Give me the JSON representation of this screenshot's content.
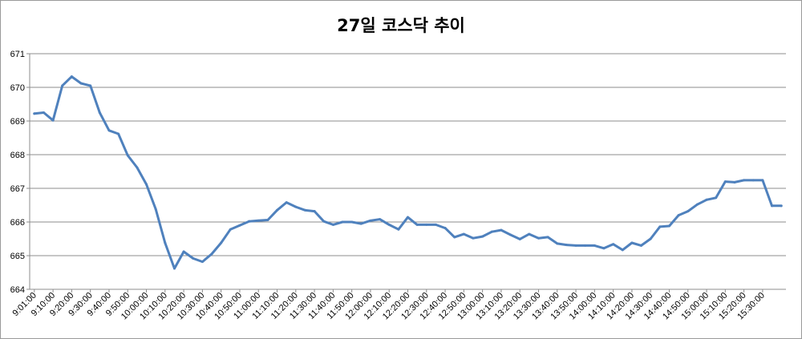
{
  "chart_data": {
    "type": "line",
    "title": "27일 코스닥 추이",
    "xlabel": "",
    "ylabel": "",
    "ylim": [
      664,
      671
    ],
    "yticks": [
      664,
      665,
      666,
      667,
      668,
      669,
      670,
      671
    ],
    "xtick_labels": [
      "9:01:00",
      "9:10:00",
      "9:20:00",
      "9:30:00",
      "9:40:00",
      "9:50:00",
      "10:00:00",
      "10:10:00",
      "10:20:00",
      "10:30:00",
      "10:40:00",
      "10:50:00",
      "11:00:00",
      "11:10:00",
      "11:20:00",
      "11:30:00",
      "11:40:00",
      "11:50:00",
      "12:00:00",
      "12:10:00",
      "12:20:00",
      "12:30:00",
      "12:40:00",
      "12:50:00",
      "13:00:00",
      "13:10:00",
      "13:20:00",
      "13:30:00",
      "13:40:00",
      "13:50:00",
      "14:00:00",
      "14:10:00",
      "14:20:00",
      "14:30:00",
      "14:40:00",
      "14:50:00",
      "15:00:00",
      "15:10:00",
      "15:20:00",
      "15:30:00"
    ],
    "grid": true,
    "legend": "none",
    "line_color": "#4f81bd",
    "values": [
      669.22,
      669.25,
      669.02,
      670.05,
      670.32,
      670.12,
      670.05,
      669.25,
      668.72,
      668.62,
      667.98,
      667.62,
      667.12,
      666.38,
      665.38,
      664.62,
      665.12,
      664.92,
      664.82,
      665.05,
      665.38,
      665.78,
      665.9,
      666.02,
      666.04,
      666.06,
      666.35,
      666.58,
      666.45,
      666.35,
      666.32,
      666.02,
      665.92,
      666.0,
      666.0,
      665.95,
      666.04,
      666.08,
      665.92,
      665.78,
      666.14,
      665.92,
      665.92,
      665.92,
      665.82,
      665.55,
      665.64,
      665.52,
      665.57,
      665.71,
      665.76,
      665.62,
      665.49,
      665.64,
      665.52,
      665.55,
      665.36,
      665.32,
      665.3,
      665.3,
      665.3,
      665.22,
      665.34,
      665.17,
      665.38,
      665.3,
      665.5,
      665.86,
      665.88,
      666.2,
      666.32,
      666.52,
      666.66,
      666.72,
      667.2,
      667.18,
      667.24,
      667.24,
      667.24,
      666.48,
      666.48
    ]
  }
}
